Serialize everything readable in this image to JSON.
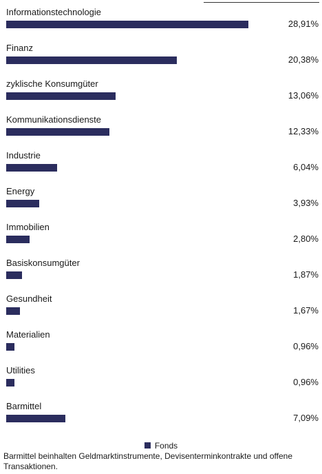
{
  "colors": {
    "bar": "#2b2d5e"
  },
  "chart_data": {
    "type": "bar",
    "orientation": "horizontal",
    "categories": [
      "Informationstechnologie",
      "Finanz",
      "zyklische Konsumgüter",
      "Kommunikationsdienste",
      "Industrie",
      "Energy",
      "Immobilien",
      "Basiskonsumgüter",
      "Gesundheit",
      "Materialien",
      "Utilities",
      "Barmittel"
    ],
    "series": [
      {
        "name": "Fonds",
        "values": [
          28.91,
          20.38,
          13.06,
          12.33,
          6.04,
          3.93,
          2.8,
          1.87,
          1.67,
          0.96,
          0.96,
          7.09
        ]
      }
    ],
    "value_labels": [
      "28,91%",
      "20,38%",
      "13,06%",
      "12,33%",
      "6,04%",
      "3,93%",
      "2,80%",
      "1,87%",
      "1,67%",
      "0,96%",
      "0,96%",
      "7,09%"
    ],
    "unit": "%",
    "legend_position": "bottom-center",
    "grid": false
  },
  "legend": {
    "label": "Fonds"
  },
  "footnote": "Barmittel beinhalten Geldmarktinstrumente, Devisenterminkontrakte und offene Transaktionen."
}
